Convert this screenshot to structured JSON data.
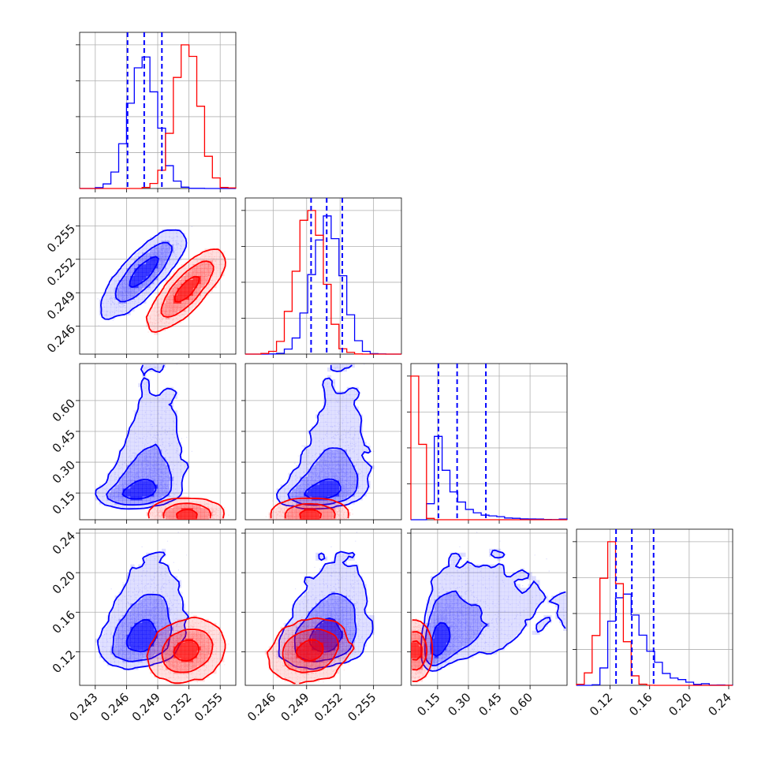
{
  "chart_data": {
    "type": "corner",
    "parameters": [
      {
        "xlim": [
          0.2415,
          0.2565
        ],
        "ticks": [
          0.243,
          0.246,
          0.249,
          0.252,
          0.255
        ],
        "tick_labels": [
          "0.243",
          "0.246",
          "0.249",
          "0.252",
          "0.255"
        ]
      },
      {
        "xlim": [
          0.2435,
          0.2575
        ],
        "ticks": [
          0.246,
          0.249,
          0.252,
          0.255
        ],
        "tick_labels": [
          "0.246",
          "0.249",
          "0.252",
          "0.255"
        ]
      },
      {
        "xlim": [
          0.02,
          0.78
        ],
        "ticks": [
          0.15,
          0.3,
          0.45,
          0.6
        ],
        "tick_labels": [
          "0.15",
          "0.30",
          "0.45",
          "0.60"
        ]
      },
      {
        "xlim": [
          0.086,
          0.244
        ],
        "ticks": [
          0.12,
          0.16,
          0.2,
          0.24
        ],
        "tick_labels": [
          "0.12",
          "0.16",
          "0.20",
          "0.24"
        ]
      }
    ],
    "series": [
      {
        "color": "#0000ff",
        "means": [
          0.2476,
          0.2508,
          0.22,
          0.142
        ],
        "sds": [
          0.0013,
          0.0013,
          0.1,
          0.018
        ],
        "skew": [
          0,
          0,
          1.0,
          0.4
        ],
        "quantiles": [
          [
            0.2461,
            0.2477,
            0.2494
          ],
          [
            0.2494,
            0.2508,
            0.2522
          ],
          [
            0.154,
            0.245,
            0.385
          ],
          [
            0.126,
            0.142,
            0.164
          ]
        ],
        "correlations": {
          "0-1": 0.85,
          "0-2": 0.45,
          "1-2": 0.45,
          "0-3": 0.3,
          "1-3": 0.3,
          "2-3": 0.55
        }
      },
      {
        "color": "#ff0000",
        "means": [
          0.2518,
          0.2493,
          0.05,
          0.121
        ],
        "sds": [
          0.0012,
          0.0012,
          0.018,
          0.01
        ],
        "skew": [
          0,
          0,
          0,
          0
        ],
        "correlations": {
          "0-1": 0.85,
          "0-2": 0.0,
          "1-2": 0.0,
          "0-3": 0.2,
          "1-3": 0.2,
          "2-3": 0.0
        }
      }
    ],
    "quantile_line_series": 0,
    "grid": true
  }
}
